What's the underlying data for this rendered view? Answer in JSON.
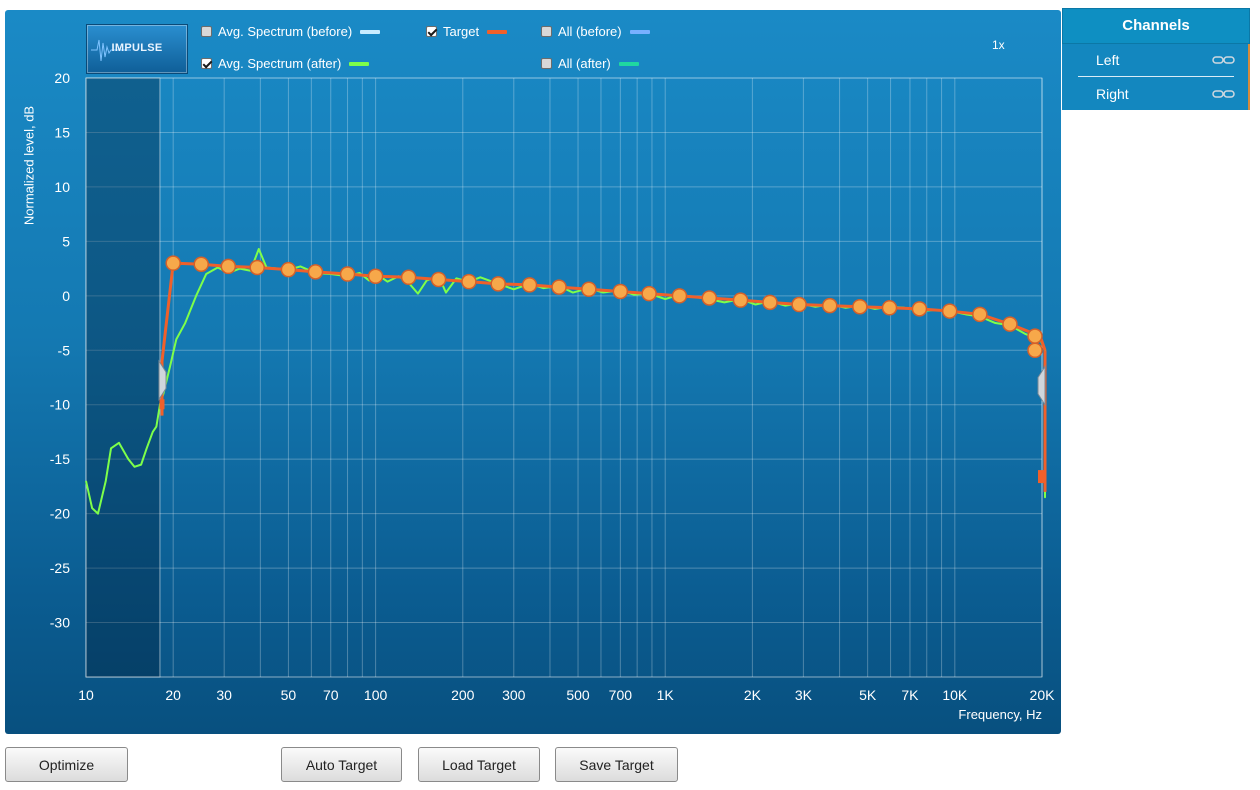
{
  "app": {
    "logo_text": "IMPULSE",
    "zoom_label": "1x"
  },
  "legend": [
    {
      "label": "Avg. Spectrum (before)",
      "checked": false,
      "color": "#c8ecff"
    },
    {
      "label": "Target",
      "checked": true,
      "color": "#f0602a"
    },
    {
      "label": "All (before)",
      "checked": false,
      "color": "#78b0ff"
    },
    {
      "label": "Avg. Spectrum (after)",
      "checked": true,
      "color": "#7dff4a"
    },
    {
      "label": "All (after)",
      "checked": false,
      "color": "#1fd8a0"
    }
  ],
  "channels": {
    "title": "Channels",
    "items": [
      {
        "label": "Left"
      },
      {
        "label": "Right"
      }
    ]
  },
  "buttons": {
    "optimize": "Optimize",
    "auto_target": "Auto Target",
    "load_target": "Load Target",
    "save_target": "Save Target"
  },
  "chart_data": {
    "type": "line",
    "xlabel": "Frequency, Hz",
    "ylabel": "Normalized level, dB",
    "x_scale": "log",
    "xlim": [
      10,
      20000
    ],
    "ylim": [
      -35,
      20
    ],
    "grid": true,
    "x_ticks": [
      {
        "value": 10,
        "label": "10"
      },
      {
        "value": 20,
        "label": "20"
      },
      {
        "value": 30,
        "label": "30"
      },
      {
        "value": 50,
        "label": "50"
      },
      {
        "value": 70,
        "label": "70"
      },
      {
        "value": 100,
        "label": "100"
      },
      {
        "value": 200,
        "label": "200"
      },
      {
        "value": 300,
        "label": "300"
      },
      {
        "value": 500,
        "label": "500"
      },
      {
        "value": 700,
        "label": "700"
      },
      {
        "value": 1000,
        "label": "1K"
      },
      {
        "value": 2000,
        "label": "2K"
      },
      {
        "value": 3000,
        "label": "3K"
      },
      {
        "value": 5000,
        "label": "5K"
      },
      {
        "value": 7000,
        "label": "7K"
      },
      {
        "value": 10000,
        "label": "10K"
      },
      {
        "value": 20000,
        "label": "20K"
      }
    ],
    "y_ticks": [
      20,
      15,
      10,
      5,
      0,
      -5,
      -10,
      -15,
      -20,
      -25,
      -30
    ],
    "excluded_range_hz": [
      10,
      18
    ],
    "series": [
      {
        "name": "Target",
        "color": "#f0602a",
        "points": [
          [
            18.3,
            -11
          ],
          [
            18.3,
            -6
          ],
          [
            20,
            3
          ],
          [
            25,
            2.9
          ],
          [
            31,
            2.7
          ],
          [
            39,
            2.6
          ],
          [
            50,
            2.4
          ],
          [
            62,
            2.2
          ],
          [
            80,
            2
          ],
          [
            100,
            1.8
          ],
          [
            130,
            1.7
          ],
          [
            165,
            1.5
          ],
          [
            210,
            1.3
          ],
          [
            265,
            1.1
          ],
          [
            340,
            1
          ],
          [
            430,
            0.8
          ],
          [
            545,
            0.6
          ],
          [
            700,
            0.4
          ],
          [
            880,
            0.2
          ],
          [
            1120,
            0
          ],
          [
            1420,
            -0.2
          ],
          [
            1820,
            -0.4
          ],
          [
            2300,
            -0.6
          ],
          [
            2900,
            -0.8
          ],
          [
            3700,
            -0.9
          ],
          [
            4700,
            -1
          ],
          [
            5950,
            -1.1
          ],
          [
            7550,
            -1.2
          ],
          [
            9600,
            -1.4
          ],
          [
            12200,
            -1.7
          ],
          [
            15500,
            -2.6
          ],
          [
            19700,
            -3.7
          ],
          [
            25000,
            -5
          ]
        ],
        "tail": [
          [
            25000,
            -5
          ],
          [
            26500,
            -14
          ],
          [
            26500,
            -18
          ]
        ]
      },
      {
        "name": "Avg. Spectrum (after)",
        "color": "#7dff4a",
        "points": [
          [
            10,
            -17
          ],
          [
            10.5,
            -19.5
          ],
          [
            11,
            -20
          ],
          [
            11.7,
            -17
          ],
          [
            12.2,
            -14
          ],
          [
            13,
            -13.5
          ],
          [
            14,
            -15
          ],
          [
            14.7,
            -15.7
          ],
          [
            15.5,
            -15.5
          ],
          [
            16.2,
            -14
          ],
          [
            17,
            -12.5
          ],
          [
            17.5,
            -12
          ],
          [
            18,
            -10
          ],
          [
            18.5,
            -9
          ],
          [
            19.5,
            -6.5
          ],
          [
            20.5,
            -4
          ],
          [
            22,
            -2.5
          ],
          [
            24,
            0
          ],
          [
            26,
            2
          ],
          [
            28.5,
            2.6
          ],
          [
            31,
            2.1
          ],
          [
            34,
            2.5
          ],
          [
            37,
            2.3
          ],
          [
            39.5,
            4.3
          ],
          [
            42,
            2.6
          ],
          [
            46,
            2.5
          ],
          [
            50,
            2.4
          ],
          [
            55,
            2.7
          ],
          [
            62,
            2.1
          ],
          [
            70,
            2
          ],
          [
            80,
            1.8
          ],
          [
            88,
            2.1
          ],
          [
            95,
            1.4
          ],
          [
            102,
            1.9
          ],
          [
            110,
            1.3
          ],
          [
            120,
            1.8
          ],
          [
            130,
            1.2
          ],
          [
            140,
            0.2
          ],
          [
            150,
            1.4
          ],
          [
            165,
            1.8
          ],
          [
            175,
            0.3
          ],
          [
            190,
            1.6
          ],
          [
            210,
            1.3
          ],
          [
            230,
            1.7
          ],
          [
            265,
            1.1
          ],
          [
            300,
            0.6
          ],
          [
            340,
            1.1
          ],
          [
            380,
            0.7
          ],
          [
            430,
            0.9
          ],
          [
            480,
            0.3
          ],
          [
            545,
            0.7
          ],
          [
            610,
            0.3
          ],
          [
            700,
            0.5
          ],
          [
            780,
            0.1
          ],
          [
            880,
            0.2
          ],
          [
            1000,
            -0.3
          ],
          [
            1120,
            0.1
          ],
          [
            1260,
            -0.1
          ],
          [
            1420,
            -0.3
          ],
          [
            1600,
            -0.6
          ],
          [
            1820,
            -0.3
          ],
          [
            2050,
            -0.8
          ],
          [
            2300,
            -0.5
          ],
          [
            2600,
            -0.9
          ],
          [
            2900,
            -0.7
          ],
          [
            3300,
            -1
          ],
          [
            3700,
            -0.8
          ],
          [
            4200,
            -1.1
          ],
          [
            4700,
            -0.9
          ],
          [
            5300,
            -1.2
          ],
          [
            5950,
            -1
          ],
          [
            6700,
            -1.1
          ],
          [
            7550,
            -1.4
          ],
          [
            8500,
            -1.3
          ],
          [
            9600,
            -1.4
          ],
          [
            10900,
            -1.7
          ],
          [
            12200,
            -1.9
          ],
          [
            13800,
            -2.5
          ],
          [
            15500,
            -2.7
          ],
          [
            17500,
            -3.5
          ],
          [
            19700,
            -4
          ],
          [
            21000,
            -5
          ],
          [
            22300,
            -9
          ],
          [
            23500,
            -13
          ],
          [
            24500,
            -18
          ],
          [
            25300,
            -18.5
          ],
          [
            26200,
            -18
          ]
        ]
      }
    ]
  }
}
